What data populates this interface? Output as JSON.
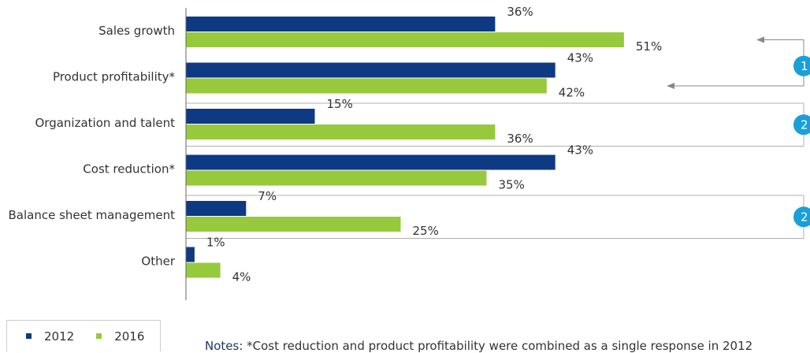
{
  "colors": {
    "series_2012": "#0e3a84",
    "series_2016": "#97c93d",
    "badge": "#1a9fd9",
    "frame": "#b0b0b0",
    "arrow": "#888888"
  },
  "chart_data": {
    "type": "bar",
    "orientation": "horizontal",
    "categories": [
      "Sales growth",
      "Product profitability*",
      "Organization and talent",
      "Cost reduction*",
      "Balance sheet management",
      "Other"
    ],
    "series": [
      {
        "name": "2012",
        "values": [
          36,
          43,
          15,
          43,
          7,
          1
        ]
      },
      {
        "name": "2016",
        "values": [
          51,
          42,
          36,
          35,
          25,
          4
        ]
      }
    ],
    "value_labels": [
      [
        "36%",
        "43%",
        "15%",
        "43%",
        "7%",
        "1%"
      ],
      [
        "51%",
        "42%",
        "36%",
        "35%",
        "25%",
        "4%"
      ]
    ],
    "xlim": [
      0,
      60
    ],
    "legend_position": "bottom-left",
    "annotations": [
      {
        "badge": "1",
        "categories": [
          "Sales growth",
          "Product profitability*"
        ],
        "style": "arrows"
      },
      {
        "badge": "2",
        "categories": [
          "Organization and talent"
        ],
        "style": "box"
      },
      {
        "badge": "2",
        "categories": [
          "Balance sheet management"
        ],
        "style": "box"
      }
    ]
  },
  "legend": {
    "items": [
      {
        "label": "2012"
      },
      {
        "label": "2016"
      }
    ]
  },
  "notes": {
    "label": "Notes:",
    "text": " *Cost reduction and product profitability were combined as a single response in 2012"
  }
}
